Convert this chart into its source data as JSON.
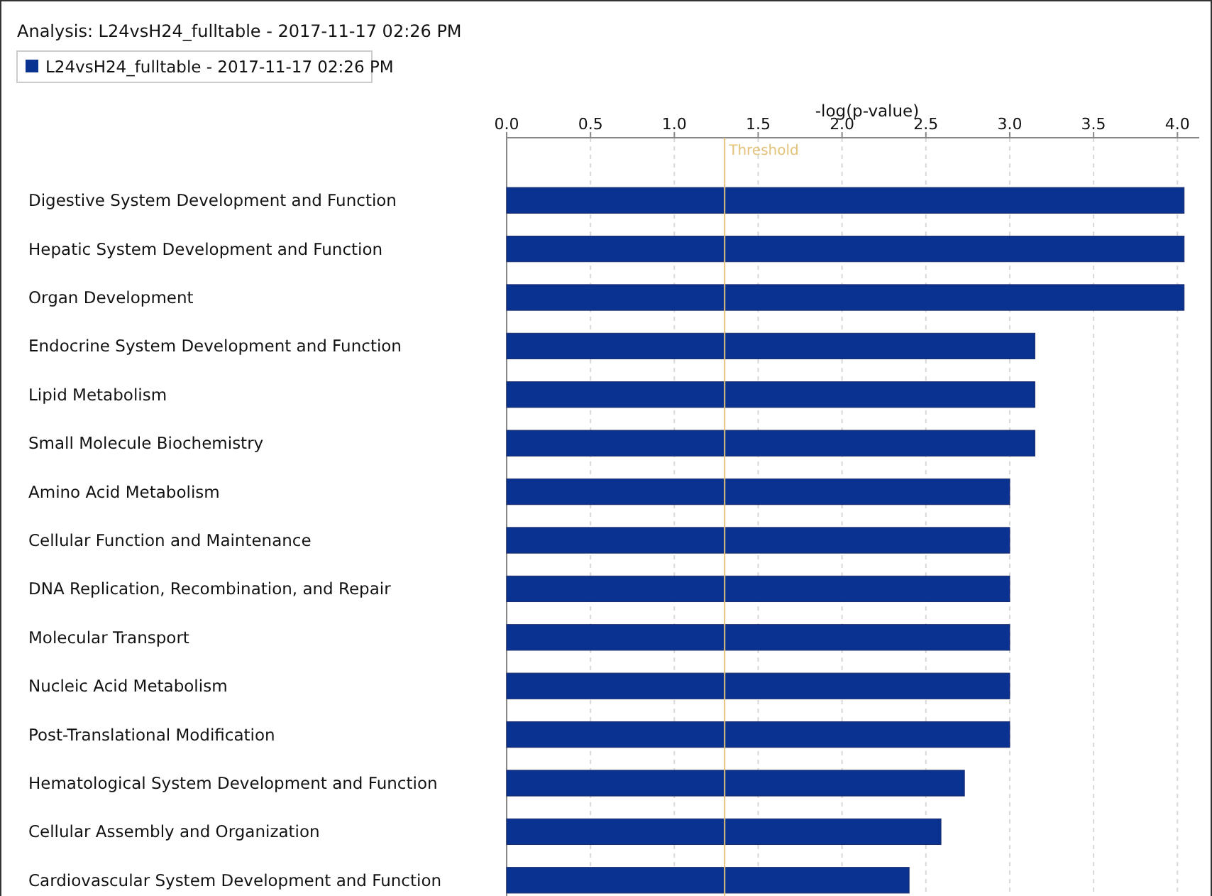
{
  "chart_data": {
    "type": "bar",
    "orientation": "horizontal",
    "title": "Analysis: L24vsH24_fulltable - 2017-11-17 02:26 PM",
    "xlabel": "-log(p-value)",
    "categories": [
      "Digestive System Development and Function",
      "Hepatic System Development and Function",
      "Organ Development",
      "Endocrine System Development and Function",
      "Lipid Metabolism",
      "Small Molecule Biochemistry",
      "Amino Acid Metabolism",
      "Cellular Function and Maintenance",
      "DNA Replication, Recombination, and Repair",
      "Molecular Transport",
      "Nucleic Acid Metabolism",
      "Post-Translational Modification",
      "Hematological System Development and Function",
      "Cellular Assembly and Organization",
      "Cardiovascular System Development and Function"
    ],
    "series": [
      {
        "name": "L24vsH24_fulltable - 2017-11-17 02:26 PM",
        "color": "#0a3291",
        "values": [
          4.04,
          4.04,
          4.04,
          3.15,
          3.15,
          3.15,
          3.0,
          3.0,
          3.0,
          3.0,
          3.0,
          3.0,
          2.73,
          2.59,
          2.4
        ]
      }
    ],
    "xlim": [
      0,
      4.13
    ],
    "xticks": [
      {
        "value": 0,
        "label": "0.0"
      },
      {
        "value": 0.5,
        "label": "0.5"
      },
      {
        "value": 1,
        "label": "1.0"
      },
      {
        "value": 1.5,
        "label": "1.5"
      },
      {
        "value": 2,
        "label": "2.0"
      },
      {
        "value": 2.5,
        "label": "2.5"
      },
      {
        "value": 3,
        "label": "3.0"
      },
      {
        "value": 3.5,
        "label": "3.5"
      },
      {
        "value": 4,
        "label": "4.0"
      }
    ],
    "grid": "x",
    "legend": "top left",
    "ref_lines": [
      {
        "axis": "x",
        "value": 1.3,
        "label": "Threshold",
        "color": "#e3c27a"
      }
    ]
  }
}
